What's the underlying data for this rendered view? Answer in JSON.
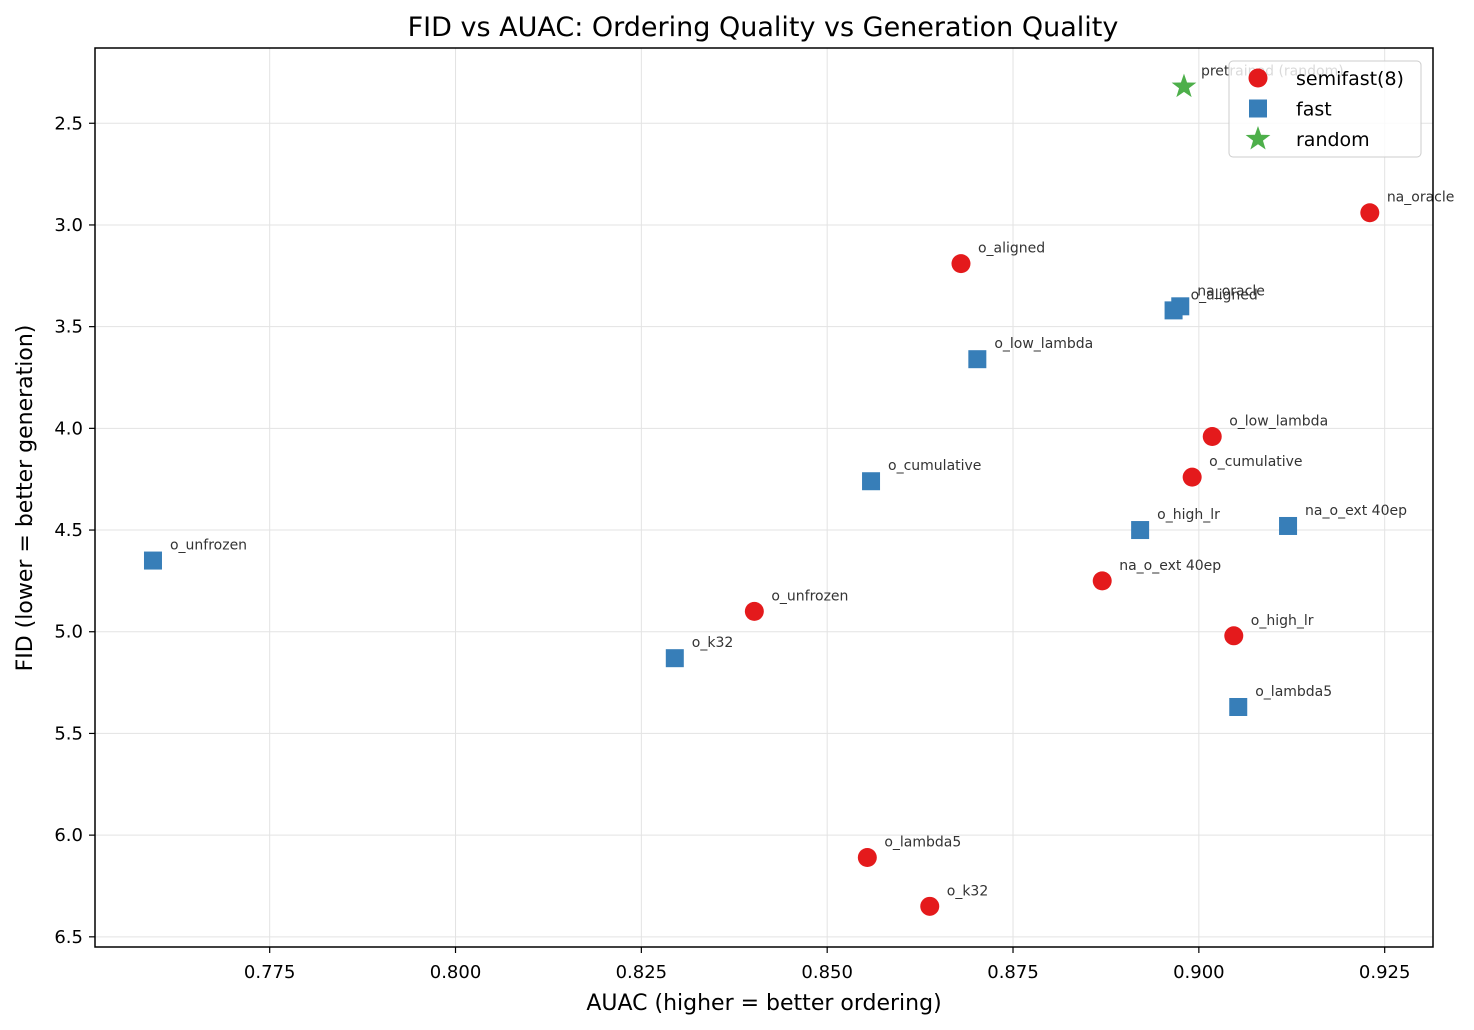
{
  "chart_data": {
    "type": "scatter",
    "title": "FID vs AUAC: Ordering Quality vs Generation Quality",
    "xlabel": "AUAC (higher = better ordering)",
    "ylabel": "FID (lower = better generation)",
    "xlim": [
      0.7515,
      0.9315
    ],
    "ylim": [
      6.55,
      2.13
    ],
    "y_inverted": true,
    "grid": true,
    "legend_position": "top-right",
    "xticks": [
      0.775,
      0.8,
      0.825,
      0.85,
      0.875,
      0.9,
      0.925
    ],
    "xtick_labels": [
      "0.775",
      "0.800",
      "0.825",
      "0.850",
      "0.875",
      "0.900",
      "0.925"
    ],
    "yticks": [
      2.5,
      3.0,
      3.5,
      4.0,
      4.5,
      5.0,
      5.5,
      6.0,
      6.5
    ],
    "ytick_labels": [
      "2.5",
      "3.0",
      "3.5",
      "4.0",
      "4.5",
      "5.0",
      "5.5",
      "6.0",
      "6.5"
    ],
    "series": [
      {
        "name": "semifast(8)",
        "marker": "circle",
        "color": "#e41a1c",
        "points": [
          {
            "x": 0.923,
            "y": 2.94,
            "label": "na_oracle"
          },
          {
            "x": 0.868,
            "y": 3.19,
            "label": "o_aligned"
          },
          {
            "x": 0.9018,
            "y": 4.04,
            "label": "o_low_lambda"
          },
          {
            "x": 0.8991,
            "y": 4.24,
            "label": "o_cumulative"
          },
          {
            "x": 0.887,
            "y": 4.75,
            "label": "na_o_ext 40ep"
          },
          {
            "x": 0.8402,
            "y": 4.9,
            "label": "o_unfrozen"
          },
          {
            "x": 0.9047,
            "y": 5.02,
            "label": "o_high_lr"
          },
          {
            "x": 0.8554,
            "y": 6.11,
            "label": "o_lambda5"
          },
          {
            "x": 0.8638,
            "y": 6.35,
            "label": "o_k32"
          }
        ]
      },
      {
        "name": "fast",
        "marker": "square",
        "color": "#377eb8",
        "points": [
          {
            "x": 0.8975,
            "y": 3.4,
            "label": "na_oracle"
          },
          {
            "x": 0.8966,
            "y": 3.42,
            "label": "o_aligned"
          },
          {
            "x": 0.8702,
            "y": 3.66,
            "label": "o_low_lambda"
          },
          {
            "x": 0.8559,
            "y": 4.26,
            "label": "o_cumulative"
          },
          {
            "x": 0.8921,
            "y": 4.5,
            "label": "o_high_lr"
          },
          {
            "x": 0.912,
            "y": 4.48,
            "label": "na_o_ext 40ep"
          },
          {
            "x": 0.7593,
            "y": 4.65,
            "label": "o_unfrozen"
          },
          {
            "x": 0.8295,
            "y": 5.13,
            "label": "o_k32"
          },
          {
            "x": 0.9053,
            "y": 5.37,
            "label": "o_lambda5"
          }
        ]
      },
      {
        "name": "random",
        "marker": "star",
        "color": "#4daf4a",
        "points": [
          {
            "x": 0.898,
            "y": 2.32,
            "label": "pretrained (random)"
          }
        ]
      }
    ]
  }
}
